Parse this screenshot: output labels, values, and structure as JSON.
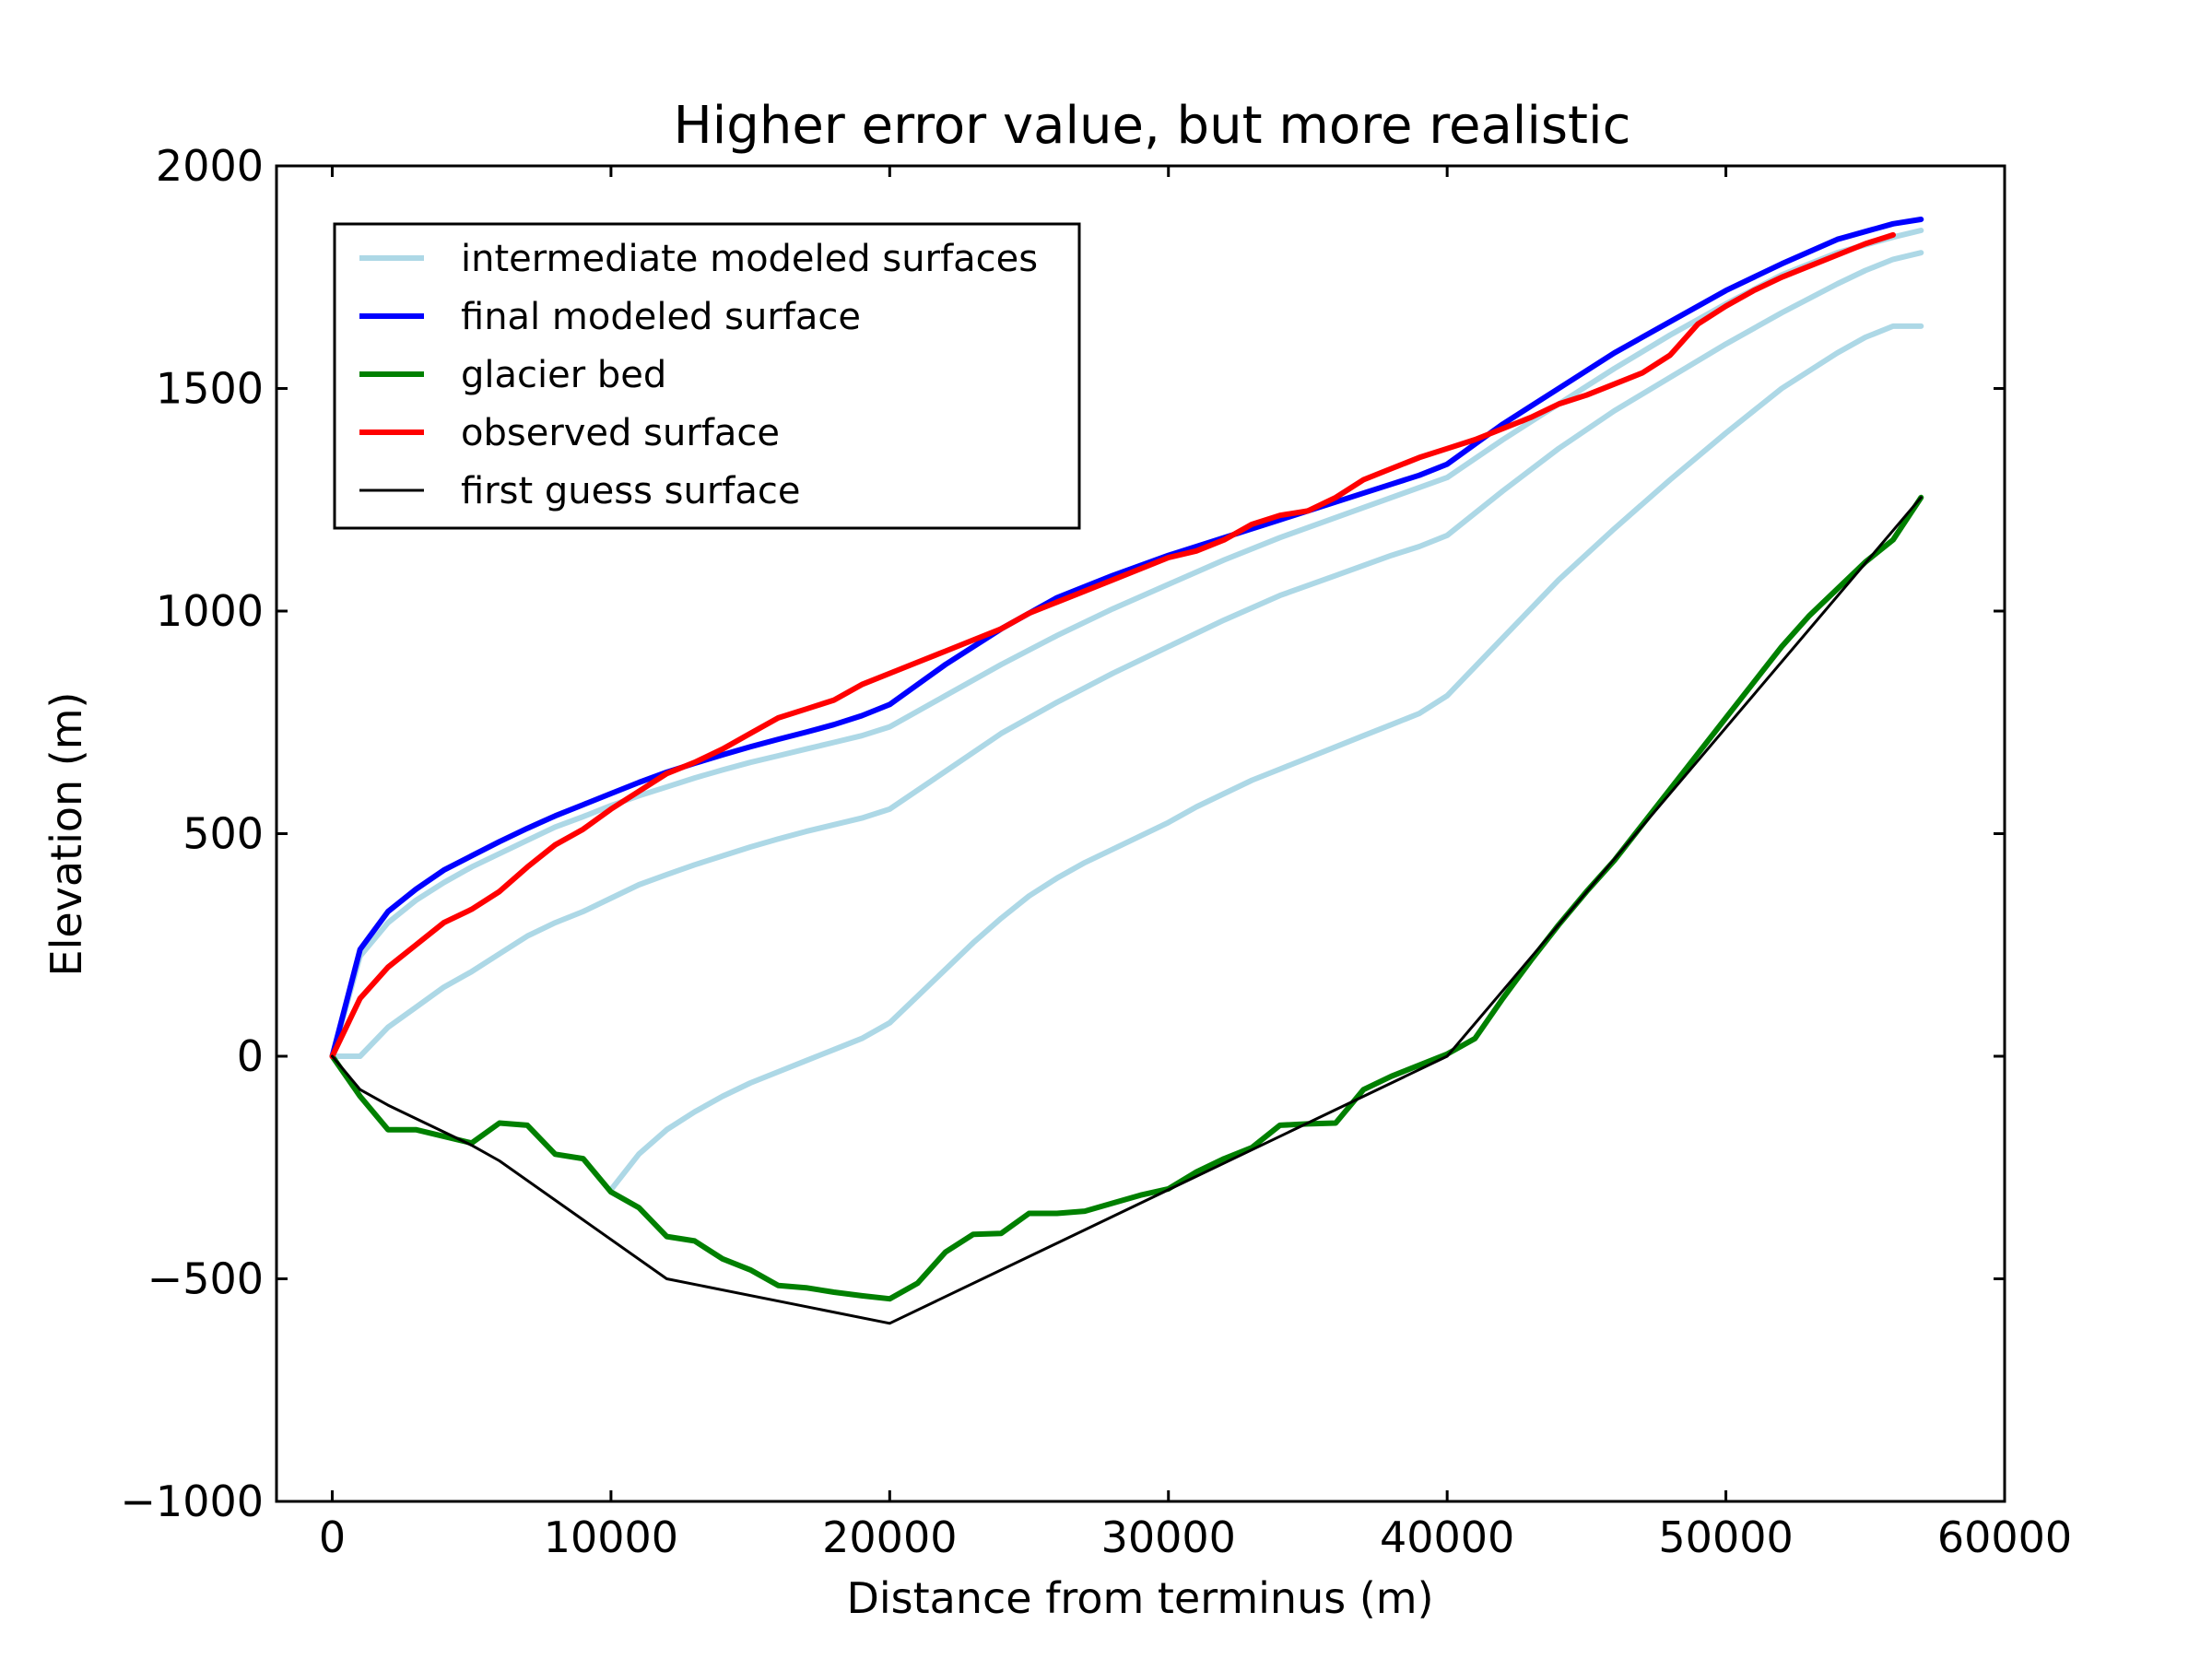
{
  "chart_data": {
    "type": "line",
    "title": "Higher error value, but more realistic",
    "xlabel": "Distance from terminus (m)",
    "ylabel": "Elevation (m)",
    "xlim": [
      -2000,
      60000
    ],
    "ylim": [
      -1000,
      2000
    ],
    "xticks": [
      0,
      10000,
      20000,
      30000,
      40000,
      50000,
      60000
    ],
    "yticks": [
      -1000,
      -500,
      0,
      500,
      1000,
      1500,
      2000
    ],
    "xtick_labels": [
      "0",
      "10000",
      "20000",
      "30000",
      "40000",
      "50000",
      "60000"
    ],
    "ytick_labels": [
      "−1000",
      "−500",
      "0",
      "500",
      "1000",
      "1500",
      "2000"
    ],
    "grid": false,
    "legend_position": "top-left",
    "legend": [
      {
        "label": "intermediate modeled surfaces",
        "color": "#add8e6",
        "width": 3
      },
      {
        "label": "final modeled surface",
        "color": "#0000ff",
        "width": 3
      },
      {
        "label": "glacier bed",
        "color": "#008000",
        "width": 3
      },
      {
        "label": "observed surface",
        "color": "#ff0000",
        "width": 3
      },
      {
        "label": "first guess surface",
        "color": "#000000",
        "width": 1.5
      }
    ],
    "series": [
      {
        "name": "intermediate modeled surfaces",
        "color": "#add8e6",
        "width": 3,
        "x": [
          10000,
          11000,
          12000,
          13000,
          14000,
          15000,
          16000,
          17000,
          18000,
          19000,
          20000,
          21000,
          22000,
          23000,
          24000,
          25000,
          26000,
          27000,
          28000,
          29000,
          30000,
          31000,
          32000,
          33000,
          34000,
          35000,
          36000,
          37000,
          38000,
          39000,
          40000,
          42000,
          44000,
          46000,
          48000,
          50000,
          52000,
          54000,
          55000,
          56000,
          57000
        ],
        "y": [
          -300,
          -220,
          -165,
          -125,
          -90,
          -60,
          -35,
          -10,
          15,
          40,
          75,
          135,
          195,
          255,
          310,
          360,
          400,
          435,
          465,
          495,
          525,
          560,
          590,
          620,
          645,
          670,
          695,
          720,
          745,
          770,
          810,
          940,
          1070,
          1185,
          1295,
          1400,
          1500,
          1580,
          1615,
          1640,
          1640
        ]
      },
      {
        "name": "intermediate modeled surfaces",
        "color": "#add8e6",
        "width": 3,
        "x": [
          0,
          1000,
          2000,
          3000,
          4000,
          5000,
          6000,
          7000,
          8000,
          9000,
          10000,
          11000,
          12000,
          13000,
          14000,
          15000,
          16000,
          17000,
          18000,
          19000,
          20000,
          22000,
          24000,
          26000,
          28000,
          30000,
          32000,
          34000,
          36000,
          38000,
          39000,
          40000,
          42000,
          44000,
          46000,
          48000,
          50000,
          52000,
          54000,
          55000,
          56000,
          57000
        ],
        "y": [
          0,
          0,
          65,
          110,
          155,
          190,
          230,
          270,
          300,
          325,
          355,
          385,
          408,
          430,
          450,
          470,
          488,
          505,
          520,
          535,
          555,
          640,
          725,
          795,
          860,
          920,
          980,
          1035,
          1080,
          1125,
          1145,
          1170,
          1270,
          1365,
          1450,
          1525,
          1600,
          1670,
          1735,
          1765,
          1790,
          1805
        ]
      },
      {
        "name": "intermediate modeled surfaces",
        "color": "#add8e6",
        "width": 3,
        "x": [
          0,
          1000,
          2000,
          3000,
          4000,
          5000,
          6000,
          7000,
          8000,
          9000,
          10000,
          11000,
          12000,
          13000,
          14000,
          15000,
          16000,
          17000,
          18000,
          19000,
          20000,
          22000,
          24000,
          26000,
          28000,
          30000,
          32000,
          34000,
          36000,
          38000,
          40000,
          42000,
          44000,
          46000,
          48000,
          50000,
          52000,
          54000,
          56000,
          57000
        ],
        "y": [
          0,
          225,
          300,
          350,
          390,
          425,
          455,
          485,
          515,
          538,
          563,
          585,
          605,
          625,
          643,
          660,
          675,
          690,
          705,
          720,
          740,
          810,
          880,
          945,
          1005,
          1060,
          1115,
          1165,
          1210,
          1255,
          1300,
          1385,
          1465,
          1545,
          1620,
          1690,
          1755,
          1805,
          1840,
          1855
        ]
      },
      {
        "name": "final modeled surface",
        "color": "#0000ff",
        "width": 3,
        "x": [
          0,
          1000,
          2000,
          3000,
          4000,
          5000,
          6000,
          7000,
          8000,
          9000,
          10000,
          11000,
          12000,
          13000,
          14000,
          15000,
          16000,
          17000,
          18000,
          19000,
          20000,
          22000,
          24000,
          26000,
          28000,
          30000,
          32000,
          34000,
          36000,
          38000,
          39000,
          40000,
          42000,
          44000,
          46000,
          48000,
          50000,
          52000,
          54000,
          56000,
          57000
        ],
        "y": [
          0,
          240,
          325,
          375,
          418,
          450,
          482,
          512,
          540,
          565,
          590,
          615,
          638,
          658,
          677,
          695,
          712,
          728,
          745,
          765,
          790,
          880,
          960,
          1030,
          1080,
          1125,
          1165,
          1205,
          1245,
          1285,
          1305,
          1330,
          1420,
          1500,
          1580,
          1650,
          1720,
          1780,
          1835,
          1870,
          1880
        ]
      },
      {
        "name": "glacier bed",
        "color": "#008000",
        "width": 3,
        "x": [
          0,
          1000,
          2000,
          3000,
          4000,
          5000,
          6000,
          7000,
          8000,
          9000,
          10000,
          11000,
          12000,
          13000,
          14000,
          15000,
          16000,
          17000,
          18000,
          19000,
          20000,
          21000,
          22000,
          23000,
          24000,
          25000,
          26000,
          27000,
          28000,
          29000,
          30000,
          31000,
          32000,
          33000,
          34000,
          35000,
          36000,
          37000,
          38000,
          39000,
          40000,
          41000,
          42000,
          43000,
          44000,
          45000,
          46000,
          47000,
          48000,
          49000,
          50000,
          51000,
          52000,
          53000,
          54000,
          55000,
          56000,
          57000
        ],
        "y": [
          0,
          -90,
          -165,
          -165,
          -180,
          -195,
          -150,
          -155,
          -220,
          -230,
          -305,
          -340,
          -405,
          -415,
          -455,
          -480,
          -515,
          -520,
          -530,
          -538,
          -545,
          -510,
          -440,
          -400,
          -398,
          -353,
          -353,
          -348,
          -330,
          -312,
          -298,
          -260,
          -230,
          -205,
          -155,
          -152,
          -150,
          -75,
          -45,
          -20,
          5,
          40,
          130,
          215,
          295,
          370,
          440,
          520,
          600,
          680,
          760,
          840,
          920,
          990,
          1050,
          1110,
          1160,
          1255
        ]
      },
      {
        "name": "observed surface",
        "color": "#ff0000",
        "width": 3,
        "x": [
          0,
          1000,
          2000,
          3000,
          4000,
          5000,
          6000,
          7000,
          8000,
          9000,
          10000,
          11000,
          12000,
          13000,
          14000,
          15000,
          16000,
          17000,
          18000,
          19000,
          20000,
          21000,
          22000,
          23000,
          24000,
          25000,
          26000,
          27000,
          28000,
          29000,
          30000,
          31000,
          32000,
          33000,
          34000,
          35000,
          36000,
          37000,
          38000,
          39000,
          40000,
          41000,
          42000,
          43000,
          44000,
          45000,
          46000,
          47000,
          48000,
          49000,
          50000,
          51000,
          52000,
          53000,
          54000,
          55000,
          56000
        ],
        "y": [
          0,
          130,
          200,
          250,
          300,
          330,
          370,
          425,
          475,
          510,
          555,
          595,
          635,
          660,
          690,
          725,
          760,
          780,
          800,
          835,
          860,
          885,
          910,
          935,
          960,
          995,
          1020,
          1045,
          1070,
          1095,
          1120,
          1135,
          1160,
          1195,
          1215,
          1225,
          1255,
          1295,
          1320,
          1345,
          1365,
          1385,
          1410,
          1435,
          1465,
          1485,
          1510,
          1535,
          1575,
          1645,
          1685,
          1720,
          1750,
          1775,
          1800,
          1825,
          1845
        ]
      },
      {
        "name": "first guess surface",
        "color": "#000000",
        "width": 1.5,
        "x": [
          0,
          1000,
          2000,
          3000,
          4000,
          5000,
          6000,
          12000,
          20000,
          30000,
          40000,
          57000
        ],
        "y": [
          0,
          -75,
          -110,
          -140,
          -170,
          -200,
          -235,
          -500,
          -600,
          -300,
          0,
          1255
        ]
      }
    ]
  }
}
